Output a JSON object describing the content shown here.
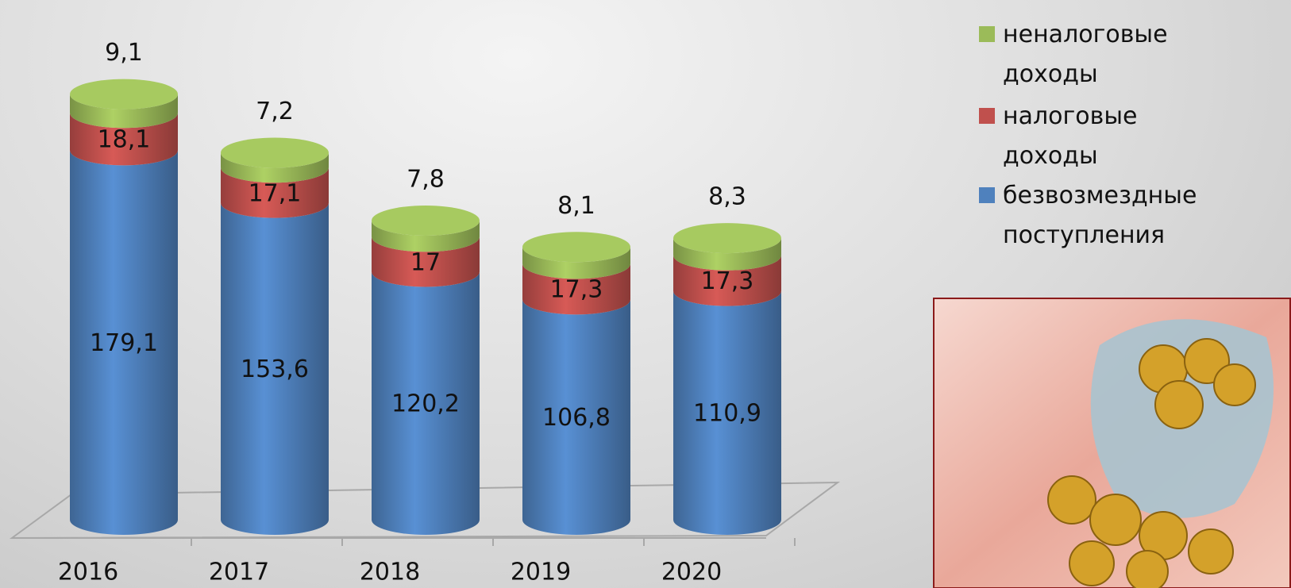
{
  "chart_data": {
    "type": "stacked-cylinder",
    "categories": [
      "2016",
      "2017",
      "2018",
      "2019",
      "2020"
    ],
    "series": [
      {
        "name": "безвозмездные поступления",
        "color": "#4f81bd",
        "values": [
          179.1,
          153.6,
          120.2,
          106.8,
          110.9
        ],
        "value_labels": [
          "179,1",
          "153,6",
          "120,2",
          "106,8",
          "110,9"
        ]
      },
      {
        "name": "налоговые доходы",
        "color": "#c0504d",
        "values": [
          18.1,
          17.1,
          17,
          17.3,
          17.3
        ],
        "value_labels": [
          "18,1",
          "17,1",
          "17",
          "17,3",
          "17,3"
        ]
      },
      {
        "name": "неналоговые доходы",
        "color": "#9bbb59",
        "values": [
          9.1,
          7.2,
          7.8,
          8.1,
          8.3
        ],
        "value_labels": [
          "9,1",
          "7,2",
          "7,8",
          "8,1",
          "8,3"
        ]
      }
    ],
    "legend": "top-right"
  }
}
